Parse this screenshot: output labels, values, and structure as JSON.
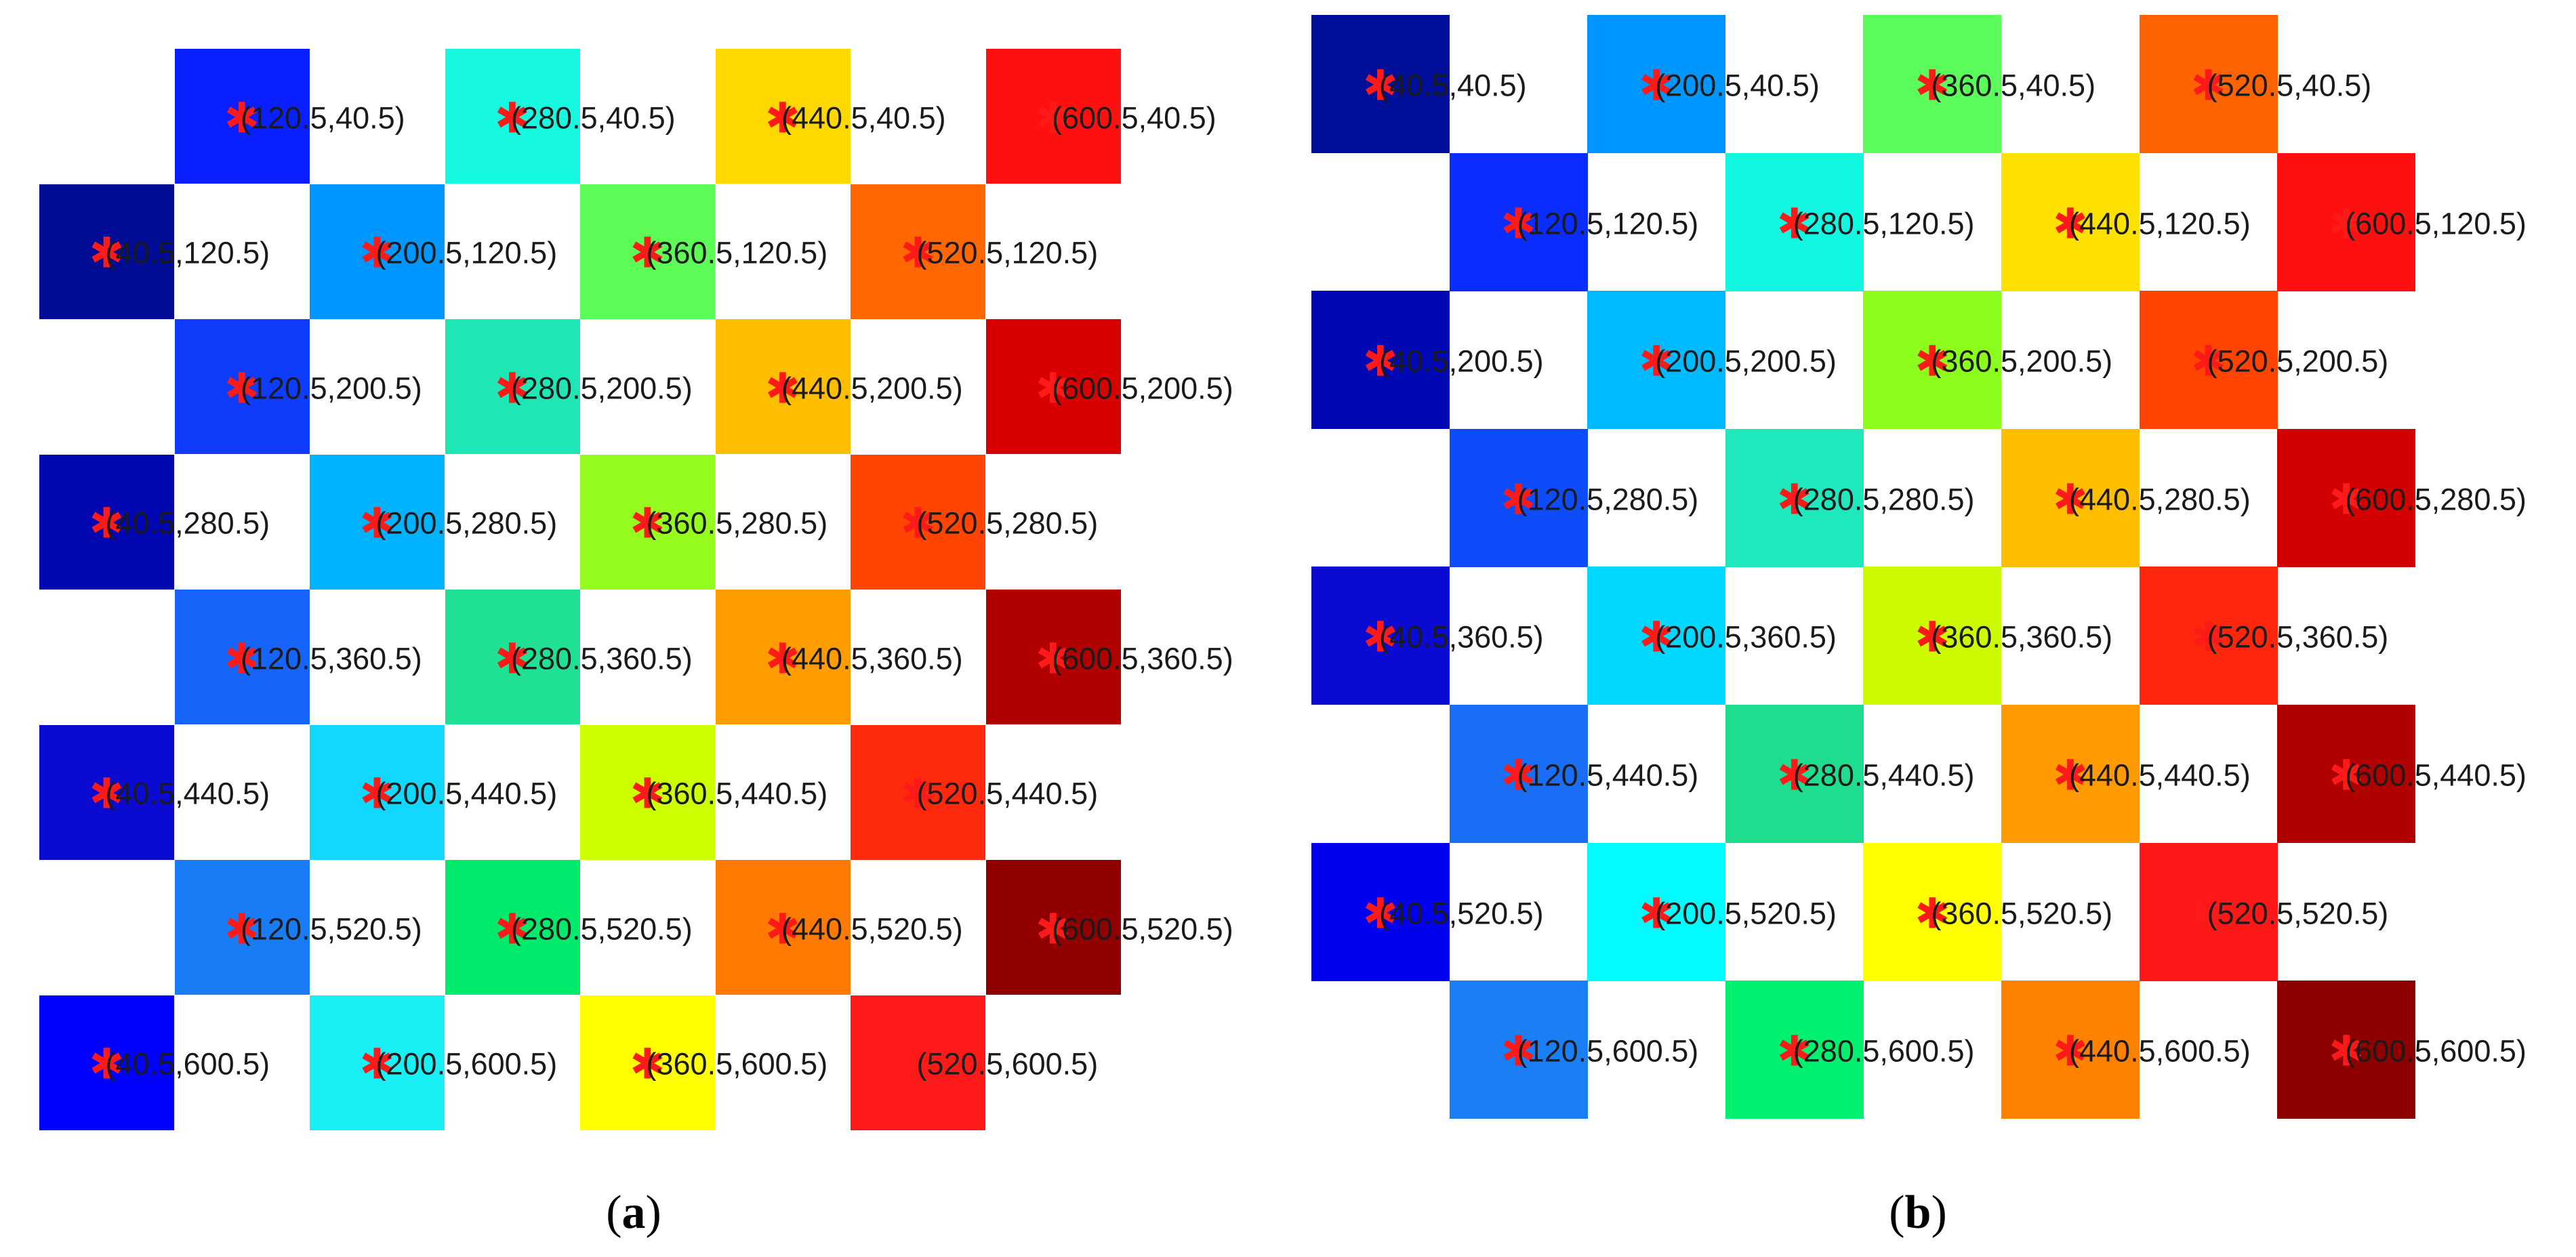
{
  "panels": [
    {
      "id": "a",
      "caption": {
        "open": "(",
        "label": "a",
        "close": ")"
      },
      "cells": [
        {
          "row": 0,
          "col": 1,
          "label": "(120.5,40.5)",
          "color": "#0a1fff"
        },
        {
          "row": 0,
          "col": 3,
          "label": "(280.5,40.5)",
          "color": "#17f8e1"
        },
        {
          "row": 0,
          "col": 5,
          "label": "(440.5,40.5)",
          "color": "#ffd800"
        },
        {
          "row": 0,
          "col": 7,
          "label": "(600.5,40.5)",
          "color": "#ff1010"
        },
        {
          "row": 1,
          "col": 0,
          "label": "(40.5,120.5)",
          "color": "#000c93"
        },
        {
          "row": 1,
          "col": 2,
          "label": "(200.5,120.5)",
          "color": "#0096ff"
        },
        {
          "row": 1,
          "col": 4,
          "label": "(360.5,120.5)",
          "color": "#5cfb55"
        },
        {
          "row": 1,
          "col": 6,
          "label": "(520.5,120.5)",
          "color": "#ff6700"
        },
        {
          "row": 2,
          "col": 1,
          "label": "(120.5,200.5)",
          "color": "#0e3cfa"
        },
        {
          "row": 2,
          "col": 3,
          "label": "(280.5,200.5)",
          "color": "#1ee6b4"
        },
        {
          "row": 2,
          "col": 5,
          "label": "(440.5,200.5)",
          "color": "#ffbe00"
        },
        {
          "row": 2,
          "col": 7,
          "label": "(600.5,200.5)",
          "color": "#d80000"
        },
        {
          "row": 3,
          "col": 0,
          "label": "(40.5,280.5)",
          "color": "#0006b0"
        },
        {
          "row": 3,
          "col": 2,
          "label": "(200.5,280.5)",
          "color": "#00b2ff"
        },
        {
          "row": 3,
          "col": 4,
          "label": "(360.5,280.5)",
          "color": "#96fb1e"
        },
        {
          "row": 3,
          "col": 6,
          "label": "(520.5,280.5)",
          "color": "#ff4500"
        },
        {
          "row": 4,
          "col": 1,
          "label": "(120.5,360.5)",
          "color": "#1664fa"
        },
        {
          "row": 4,
          "col": 3,
          "label": "(280.5,360.5)",
          "color": "#1fe193"
        },
        {
          "row": 4,
          "col": 5,
          "label": "(440.5,360.5)",
          "color": "#ff9d00"
        },
        {
          "row": 4,
          "col": 7,
          "label": "(600.5,360.5)",
          "color": "#b00000"
        },
        {
          "row": 5,
          "col": 0,
          "label": "(40.5,440.5)",
          "color": "#0a0ad0"
        },
        {
          "row": 5,
          "col": 2,
          "label": "(200.5,440.5)",
          "color": "#12d8ff"
        },
        {
          "row": 5,
          "col": 4,
          "label": "(360.5,440.5)",
          "color": "#ccff00"
        },
        {
          "row": 5,
          "col": 6,
          "label": "(520.5,440.5)",
          "color": "#ff2a0e"
        },
        {
          "row": 6,
          "col": 1,
          "label": "(120.5,520.5)",
          "color": "#1a7cf5"
        },
        {
          "row": 6,
          "col": 3,
          "label": "(280.5,520.5)",
          "color": "#00ea6c"
        },
        {
          "row": 6,
          "col": 5,
          "label": "(440.5,520.5)",
          "color": "#ff7a00"
        },
        {
          "row": 6,
          "col": 7,
          "label": "(600.5,520.5)",
          "color": "#900000"
        },
        {
          "row": 7,
          "col": 0,
          "label": "(40.5,600.5)",
          "color": "#0000ff"
        },
        {
          "row": 7,
          "col": 2,
          "label": "(200.5,600.5)",
          "color": "#18f0f5"
        },
        {
          "row": 7,
          "col": 4,
          "label": "(360.5,600.5)",
          "color": "#ffff00"
        },
        {
          "row": 7,
          "col": 6,
          "label": "(520.5,600.5)",
          "color": "#ff1a1a"
        }
      ]
    },
    {
      "id": "b",
      "caption": {
        "open": "(",
        "label": "b",
        "close": ")"
      },
      "cells": [
        {
          "row": 0,
          "col": 0,
          "label": "(40.5,40.5)",
          "color": "#000f9a"
        },
        {
          "row": 0,
          "col": 2,
          "label": "(200.5,40.5)",
          "color": "#0096ff"
        },
        {
          "row": 0,
          "col": 4,
          "label": "(360.5,40.5)",
          "color": "#5cfb5c"
        },
        {
          "row": 0,
          "col": 6,
          "label": "(520.5,40.5)",
          "color": "#ff6300"
        },
        {
          "row": 1,
          "col": 1,
          "label": "(120.5,120.5)",
          "color": "#0a2cff"
        },
        {
          "row": 1,
          "col": 3,
          "label": "(280.5,120.5)",
          "color": "#11f7e1"
        },
        {
          "row": 1,
          "col": 5,
          "label": "(440.5,120.5)",
          "color": "#ffe100"
        },
        {
          "row": 1,
          "col": 7,
          "label": "(600.5,120.5)",
          "color": "#ff1010"
        },
        {
          "row": 2,
          "col": 0,
          "label": "(40.5,200.5)",
          "color": "#0008b4"
        },
        {
          "row": 2,
          "col": 2,
          "label": "(200.5,200.5)",
          "color": "#00baff"
        },
        {
          "row": 2,
          "col": 4,
          "label": "(360.5,200.5)",
          "color": "#8cfc1c"
        },
        {
          "row": 2,
          "col": 6,
          "label": "(520.5,200.5)",
          "color": "#ff4400"
        },
        {
          "row": 3,
          "col": 1,
          "label": "(120.5,280.5)",
          "color": "#0e4cfa"
        },
        {
          "row": 3,
          "col": 3,
          "label": "(280.5,280.5)",
          "color": "#1ee8bc"
        },
        {
          "row": 3,
          "col": 5,
          "label": "(440.5,280.5)",
          "color": "#ffbe00"
        },
        {
          "row": 3,
          "col": 7,
          "label": "(600.5,280.5)",
          "color": "#d20000"
        },
        {
          "row": 4,
          "col": 0,
          "label": "(40.5,360.5)",
          "color": "#0a0ad2"
        },
        {
          "row": 4,
          "col": 2,
          "label": "(200.5,360.5)",
          "color": "#00d8ff"
        },
        {
          "row": 4,
          "col": 4,
          "label": "(360.5,360.5)",
          "color": "#ccfa00"
        },
        {
          "row": 4,
          "col": 6,
          "label": "(520.5,360.5)",
          "color": "#ff260e"
        },
        {
          "row": 5,
          "col": 1,
          "label": "(120.5,440.5)",
          "color": "#1a6ef5"
        },
        {
          "row": 5,
          "col": 3,
          "label": "(280.5,440.5)",
          "color": "#1fdd8f"
        },
        {
          "row": 5,
          "col": 5,
          "label": "(440.5,440.5)",
          "color": "#ff9a00"
        },
        {
          "row": 5,
          "col": 7,
          "label": "(600.5,440.5)",
          "color": "#b00000"
        },
        {
          "row": 6,
          "col": 0,
          "label": "(40.5,520.5)",
          "color": "#0000ee"
        },
        {
          "row": 6,
          "col": 2,
          "label": "(200.5,520.5)",
          "color": "#00fcff"
        },
        {
          "row": 6,
          "col": 4,
          "label": "(360.5,520.5)",
          "color": "#ffff00"
        },
        {
          "row": 6,
          "col": 6,
          "label": "(520.5,520.5)",
          "color": "#ff1818"
        },
        {
          "row": 7,
          "col": 1,
          "label": "(120.5,600.5)",
          "color": "#1a7ef5"
        },
        {
          "row": 7,
          "col": 3,
          "label": "(280.5,600.5)",
          "color": "#00f070"
        },
        {
          "row": 7,
          "col": 5,
          "label": "(440.5,600.5)",
          "color": "#ff8100"
        },
        {
          "row": 7,
          "col": 7,
          "label": "(600.5,600.5)",
          "color": "#8c0000"
        }
      ]
    }
  ],
  "marker_glyph": "✱"
}
